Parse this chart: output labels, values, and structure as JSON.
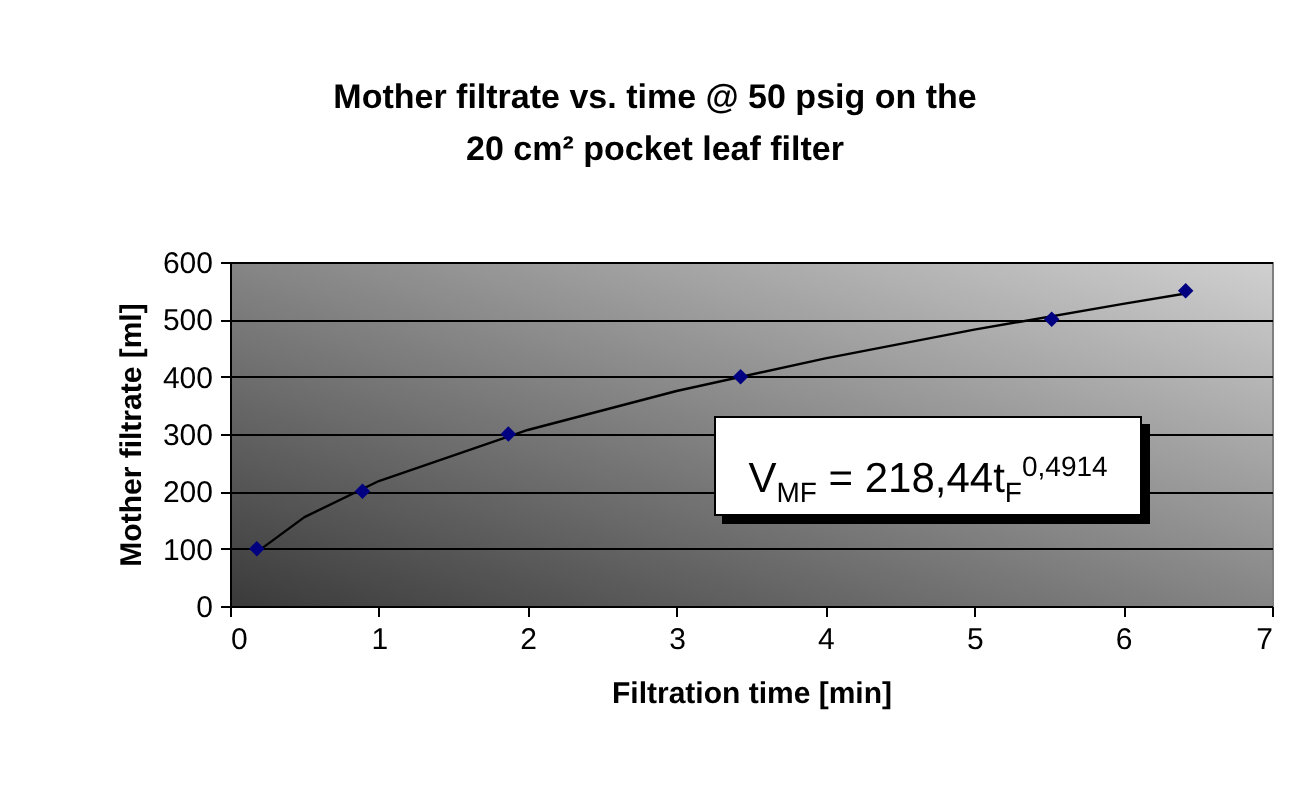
{
  "chart_data": {
    "type": "scatter",
    "title": "Mother filtrate vs. time @ 50 psig on the\n20 cm² pocket leaf filter",
    "xlabel": "Filtration time [min]",
    "ylabel": "Mother filtrate [ml]",
    "x": [
      0.18,
      0.89,
      1.87,
      3.43,
      5.52,
      6.42
    ],
    "series": [
      {
        "type": "scatter",
        "color": "#000080",
        "marker": "diamond",
        "values": [
          100,
          200,
          300,
          400,
          500,
          550
        ]
      },
      {
        "type": "line",
        "color": "#000000",
        "x": [
          0.18,
          0.5,
          1,
          2,
          3,
          4,
          5,
          6,
          6.42
        ],
        "values": [
          94,
          155,
          218,
          307,
          375,
          432,
          482,
          527,
          545
        ]
      }
    ],
    "xlim": [
      0,
      7
    ],
    "xticks": [
      0,
      1,
      2,
      3,
      4,
      5,
      6,
      7
    ],
    "ylim": [
      0,
      600
    ],
    "yticks": [
      0,
      100,
      200,
      300,
      400,
      500,
      600
    ],
    "grid": "y",
    "annotations": [
      "V$_{MF}$ = 218,44t$_{F}$$^{0,4914}$"
    ]
  }
}
